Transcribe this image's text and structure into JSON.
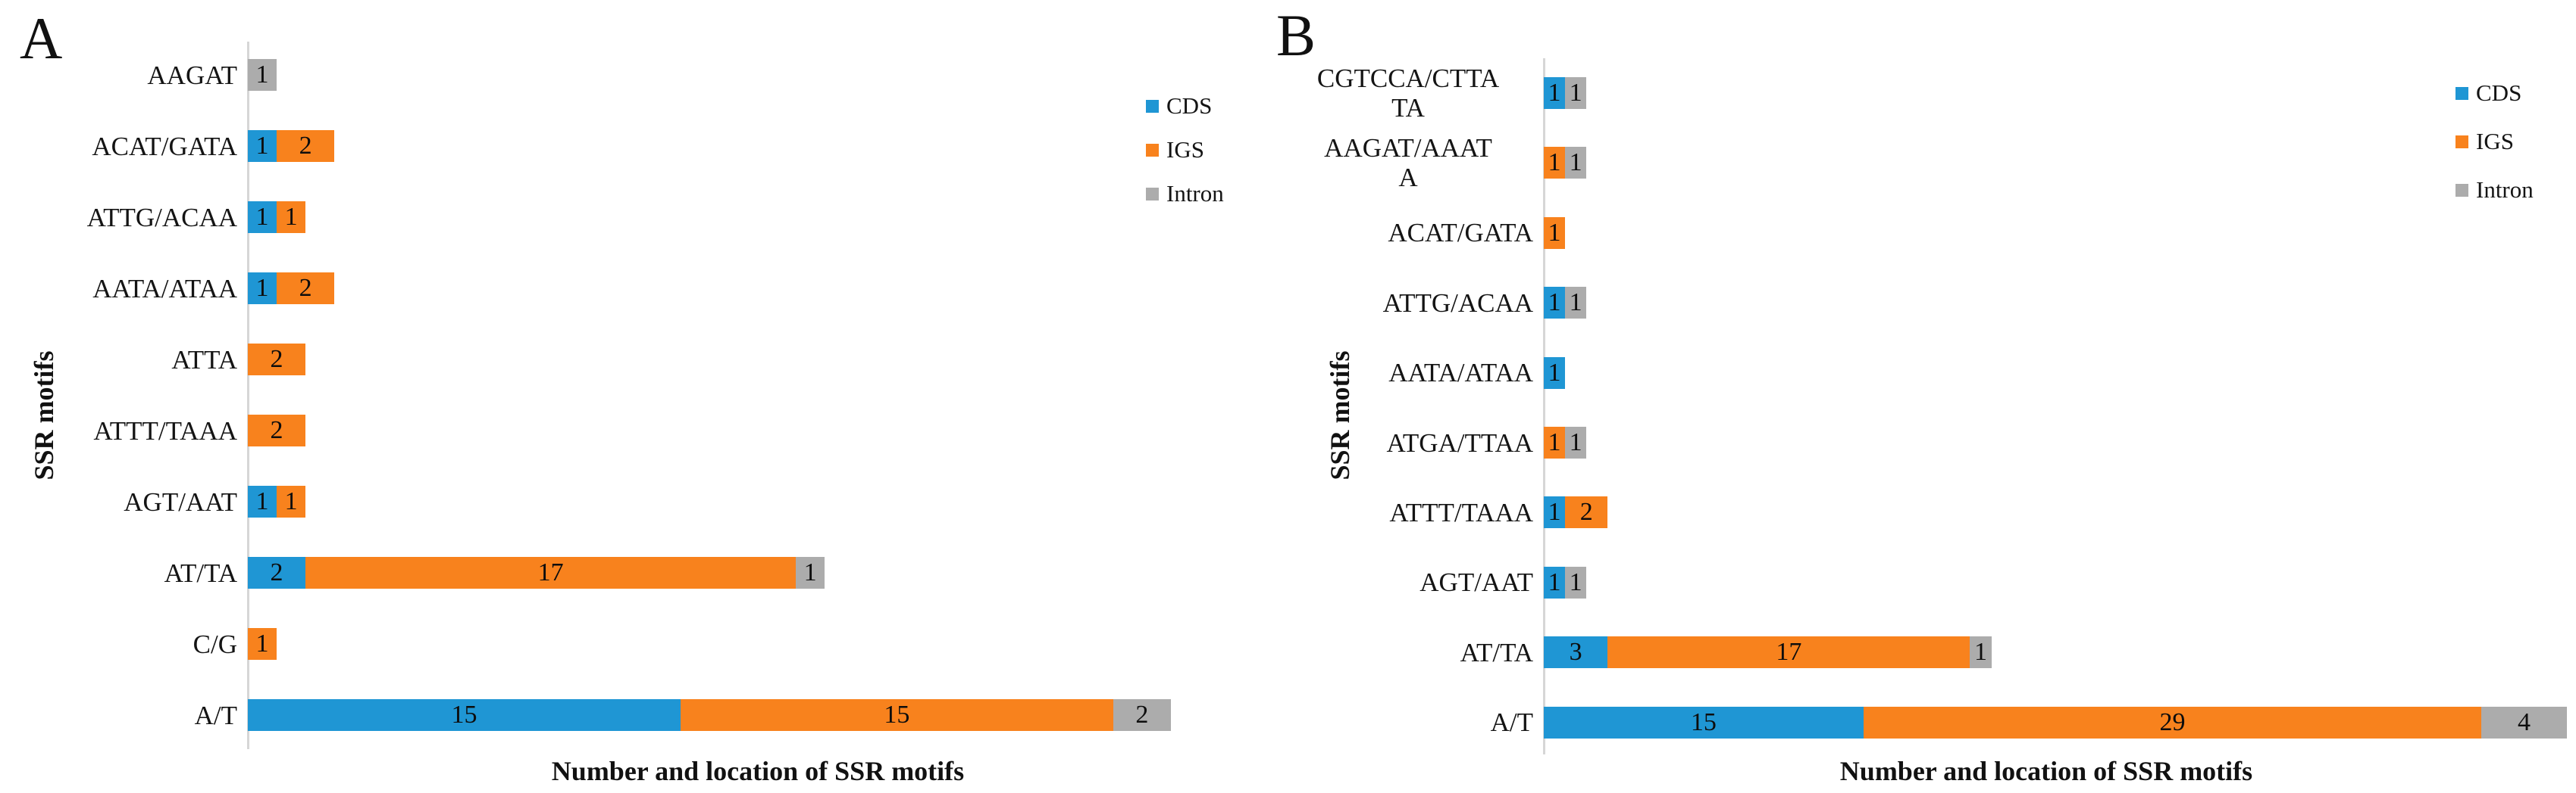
{
  "figure": {
    "background": "#ffffff",
    "xlabel": "Number and location of SSR motifs",
    "ylabel": "SSR motifs"
  },
  "colors": {
    "cds_blue": "#1F96D4",
    "igs_orange": "#F8821D",
    "intron_gray": "#ACACAC",
    "axis_line": "#D6D6D6",
    "text": "#111111"
  },
  "chart_data": [
    {
      "type": "bar",
      "orientation": "horizontal",
      "stacked": true,
      "panel_label": "A",
      "title": "",
      "xlabel": "Number and location of SSR motifs",
      "ylabel": "SSR motifs",
      "legend_position": "upper right",
      "legend": [
        "CDS",
        "IGS",
        "Intron"
      ],
      "grid": false,
      "xlim": [
        0,
        32
      ],
      "categories": [
        "AAGAT",
        "ACAT/GATA",
        "ATTG/ACAA",
        "AATA/ATAA",
        "ATTA",
        "ATTT/TAAA",
        "AGT/AAT",
        "AT/TA",
        "C/G",
        "A/T"
      ],
      "category_lines": [
        [
          "AAGAT"
        ],
        [
          "ACAT/GATA"
        ],
        [
          "ATTG/ACAA"
        ],
        [
          "AATA/ATAA"
        ],
        [
          "ATTA"
        ],
        [
          "ATTT/TAAA"
        ],
        [
          "AGT/AAT"
        ],
        [
          "AT/TA"
        ],
        [
          "C/G"
        ],
        [
          "A/T"
        ]
      ],
      "series": [
        {
          "name": "CDS",
          "color": "#1F96D4",
          "values": [
            0,
            1,
            1,
            1,
            0,
            0,
            1,
            2,
            0,
            15
          ]
        },
        {
          "name": "IGS",
          "color": "#F8821D",
          "values": [
            0,
            2,
            1,
            2,
            2,
            2,
            1,
            17,
            1,
            15
          ]
        },
        {
          "name": "Intron",
          "color": "#ACACAC",
          "values": [
            1,
            0,
            0,
            0,
            0,
            0,
            0,
            1,
            0,
            2
          ]
        }
      ]
    },
    {
      "type": "bar",
      "orientation": "horizontal",
      "stacked": true,
      "panel_label": "B",
      "title": "",
      "xlabel": "Number and location of SSR motifs",
      "ylabel": "SSR motifs",
      "legend_position": "upper right",
      "legend": [
        "CDS",
        "IGS",
        "Intron"
      ],
      "grid": false,
      "xlim": [
        0,
        48
      ],
      "categories": [
        "CGTCCA/CTTATA",
        "AAGAT/AAATA",
        "ACAT/GATA",
        "ATTG/ACAA",
        "AATA/ATAA",
        "ATGA/TTAA",
        "ATTT/TAAA",
        "AGT/AAT",
        "AT/TA",
        "A/T"
      ],
      "category_lines": [
        [
          "CGTCCA/CTTA",
          "TA"
        ],
        [
          "AAGAT/AAAT",
          "A"
        ],
        [
          "ACAT/GATA"
        ],
        [
          "ATTG/ACAA"
        ],
        [
          "AATA/ATAA"
        ],
        [
          "ATGA/TTAA"
        ],
        [
          "ATTT/TAAA"
        ],
        [
          "AGT/AAT"
        ],
        [
          "AT/TA"
        ],
        [
          "A/T"
        ]
      ],
      "series": [
        {
          "name": "CDS",
          "color": "#1F96D4",
          "values": [
            1,
            0,
            0,
            1,
            1,
            0,
            1,
            1,
            3,
            15
          ]
        },
        {
          "name": "IGS",
          "color": "#F8821D",
          "values": [
            0,
            1,
            1,
            0,
            0,
            1,
            2,
            0,
            17,
            29
          ]
        },
        {
          "name": "Intron",
          "color": "#ACACAC",
          "values": [
            1,
            1,
            0,
            1,
            0,
            1,
            0,
            1,
            1,
            4
          ]
        }
      ]
    }
  ]
}
